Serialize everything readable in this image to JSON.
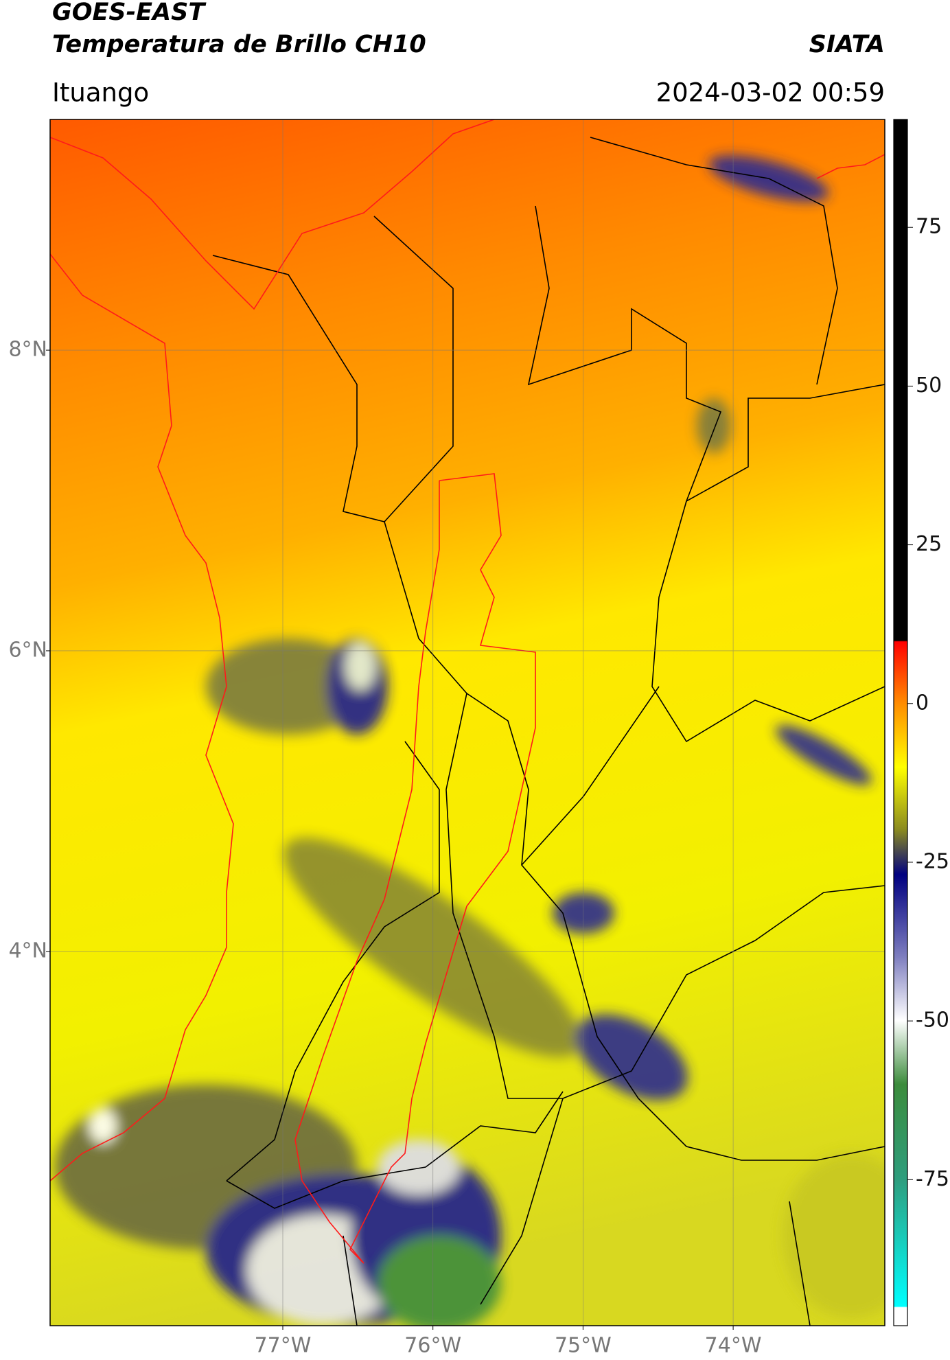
{
  "header": {
    "title": "GOES-EAST",
    "subtitle": "Temperatura de Brillo CH10",
    "source": "SIATA",
    "region": "Ituango",
    "timestamp": "2024-03-02 00:59"
  },
  "map": {
    "xlim": [
      -78.55,
      -72.99
    ],
    "ylim": [
      1.51,
      9.535
    ],
    "xticks": [
      {
        "value": -77,
        "label": "77°W"
      },
      {
        "value": -76,
        "label": "76°W"
      },
      {
        "value": -75,
        "label": "75°W"
      },
      {
        "value": -74,
        "label": "74°W"
      }
    ],
    "yticks": [
      {
        "value": 8,
        "label": "8°N"
      },
      {
        "value": 6,
        "label": "6°N"
      },
      {
        "value": 4,
        "label": "4°N"
      }
    ],
    "grid": true
  },
  "colorbar": {
    "clim": [
      -98,
      92
    ],
    "ticks": [
      75,
      50,
      25,
      0,
      -25,
      -50,
      -75
    ]
  }
}
